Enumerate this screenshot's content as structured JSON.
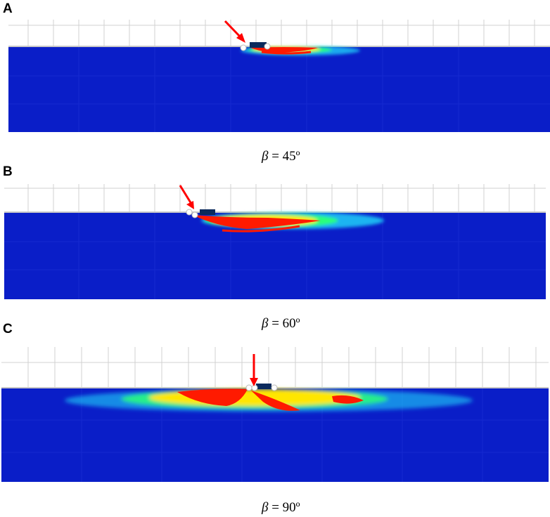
{
  "panels": [
    {
      "label": "A",
      "beta_symbol": "β",
      "angle_text": " = 45º",
      "impact_angle_deg": 45
    },
    {
      "label": "B",
      "beta_symbol": "β",
      "angle_text": " = 60º",
      "impact_angle_deg": 60
    },
    {
      "label": "C",
      "beta_symbol": "β",
      "angle_text": " = 90º",
      "impact_angle_deg": 90
    }
  ],
  "colors": {
    "domain_blue": "#0a1ec8",
    "grid_line": "#d2d2d2",
    "damage_red": "#ff1a00",
    "damage_yellow": "#ffe600",
    "damage_cyan": "#21e6ff",
    "damage_green": "#2bff7a",
    "impactor": "#0b2a5c",
    "arrow": "#ff0000"
  },
  "icons": {
    "impact_arrow": "red-arrow-icon",
    "impactor_particle": "white-circle-icon"
  }
}
